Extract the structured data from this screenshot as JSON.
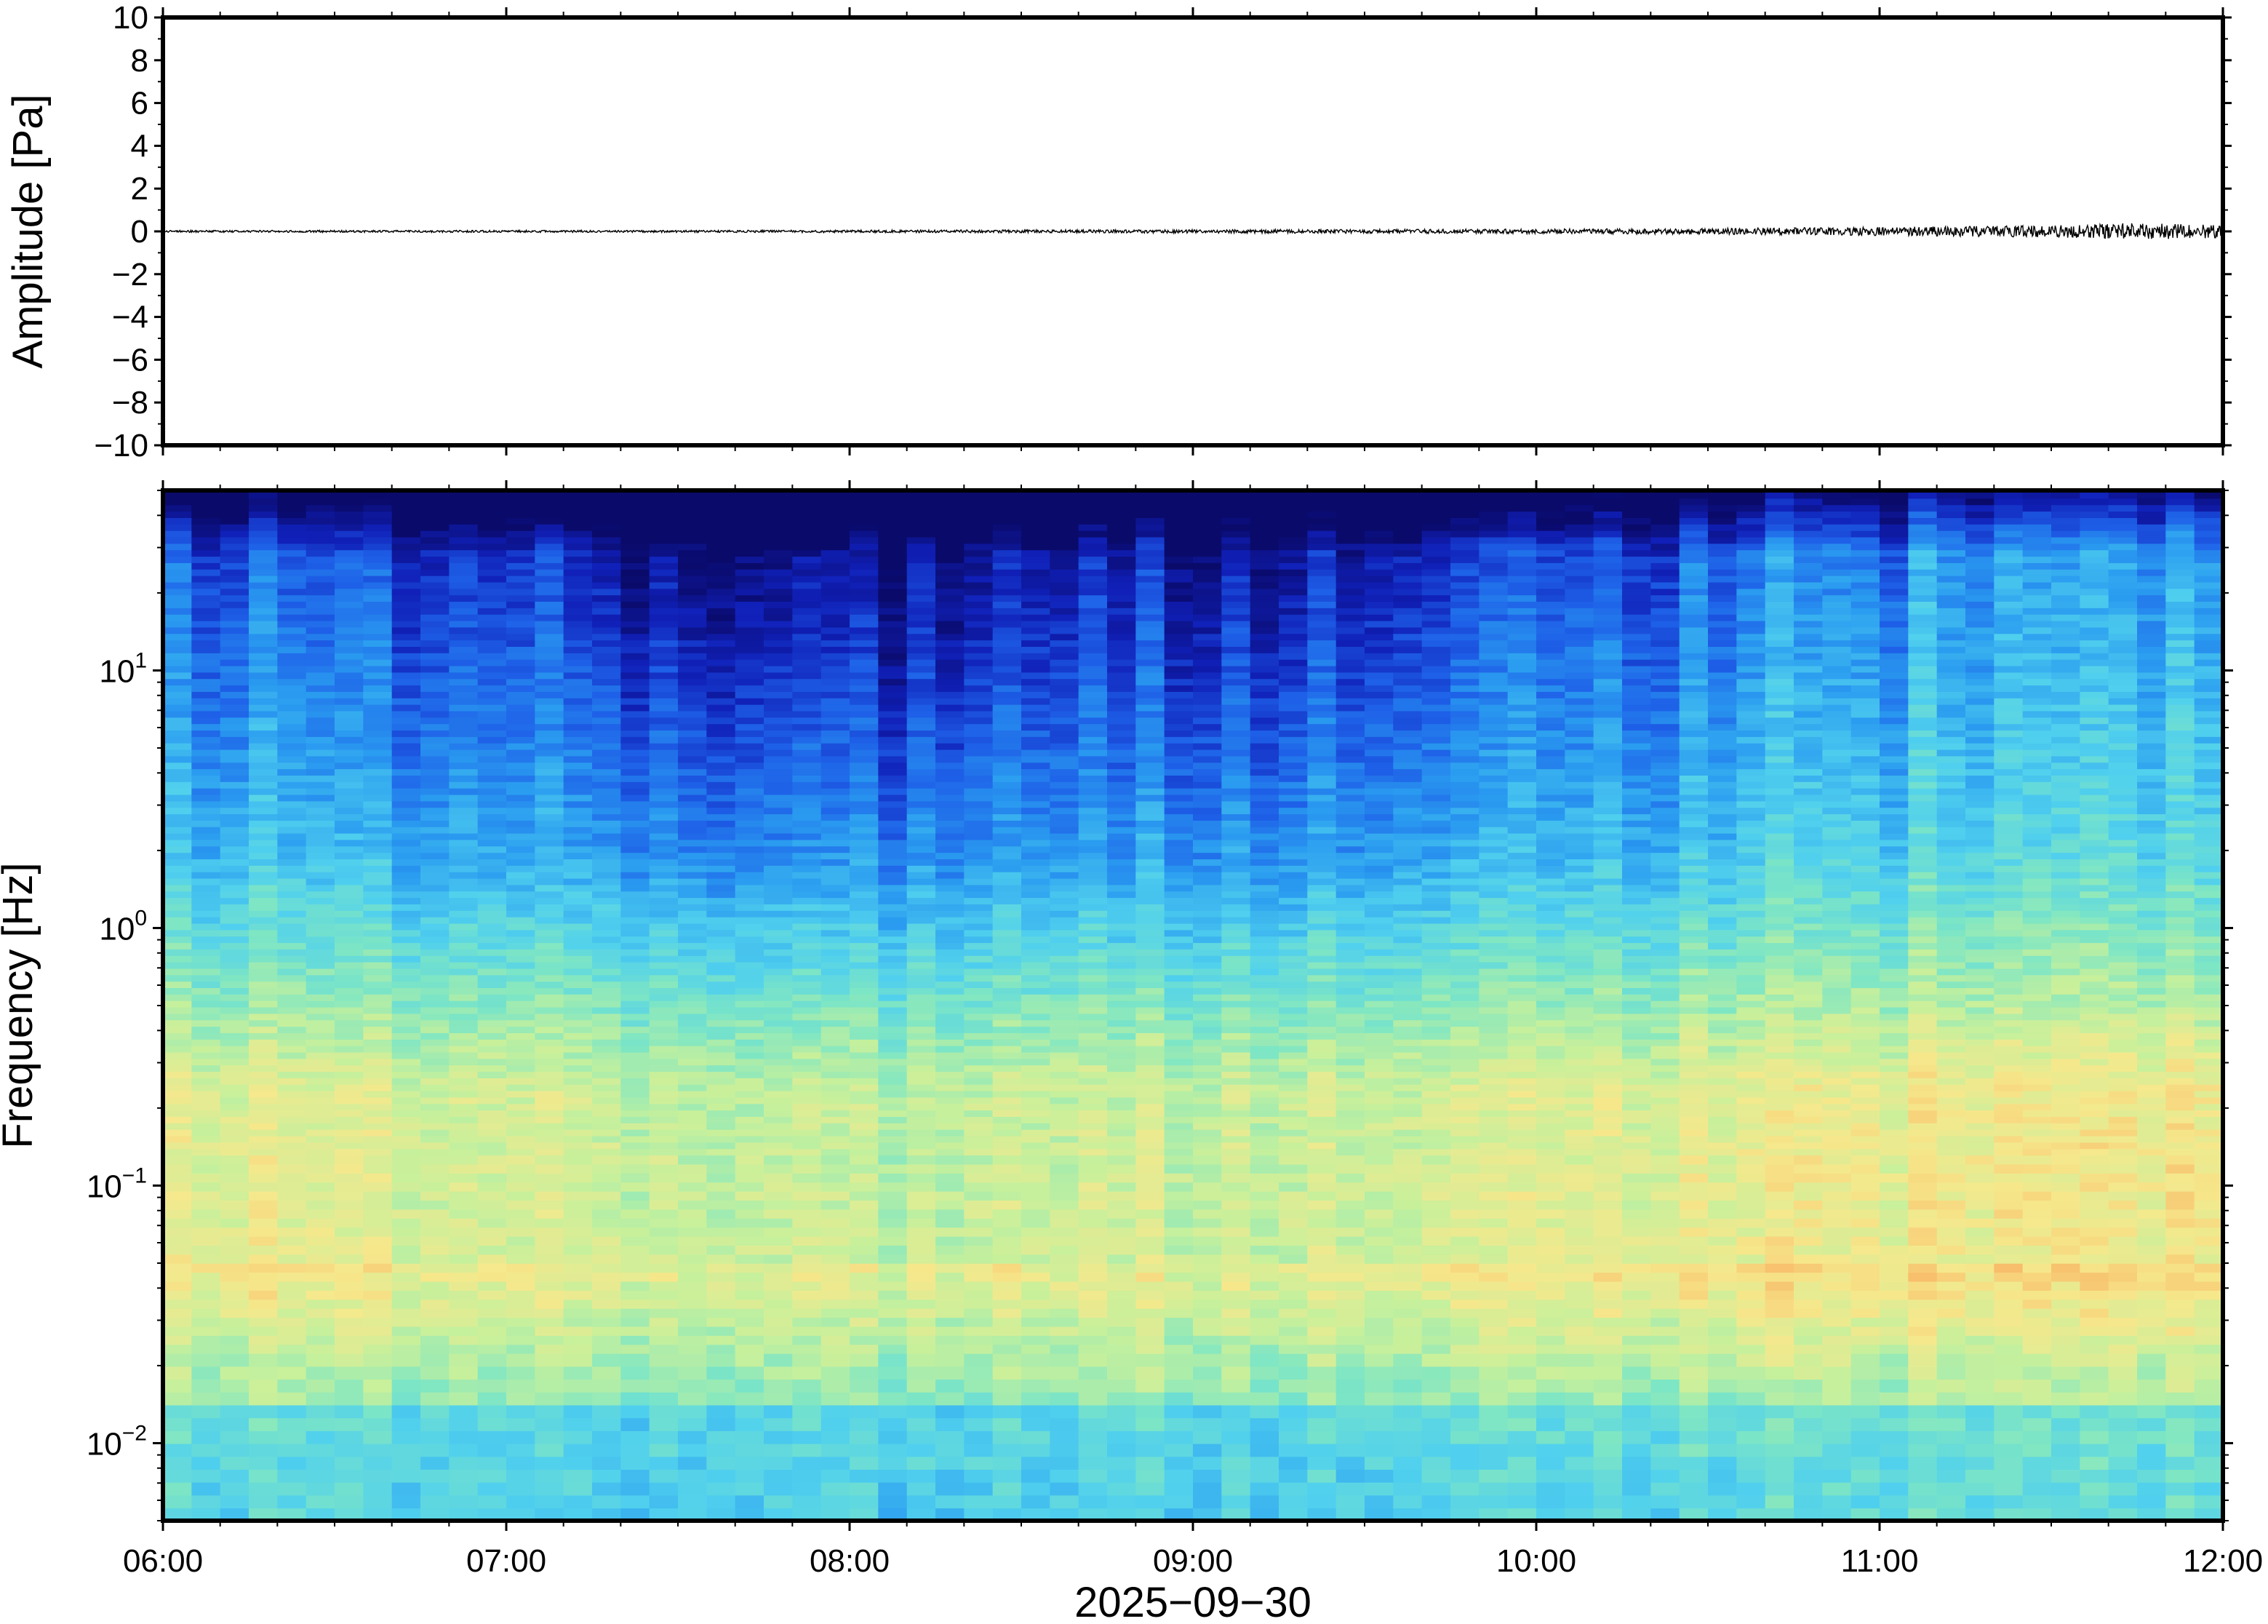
{
  "chart_data": [
    {
      "type": "line",
      "panel": "waveform",
      "ylabel": "Amplitude [Pa]",
      "ylim": [
        -10,
        10
      ],
      "yticks": [
        10,
        8,
        6,
        4,
        2,
        0,
        -2,
        -4,
        -6,
        -8,
        -10
      ],
      "ytick_labels": [
        "10",
        "8",
        "6",
        "4",
        "2",
        "0",
        "−2",
        "−4",
        "−6",
        "−8",
        "−10"
      ],
      "x_range": [
        "06:00",
        "12:00"
      ],
      "line_color": "#000000",
      "envelope": {
        "x_hours": [
          6.0,
          6.5,
          7.0,
          7.5,
          8.0,
          8.5,
          9.0,
          9.5,
          10.0,
          10.5,
          11.0,
          11.5,
          11.7,
          11.9,
          12.0
        ],
        "amplitude_pa": [
          0.05,
          0.05,
          0.05,
          0.05,
          0.06,
          0.07,
          0.08,
          0.09,
          0.11,
          0.14,
          0.2,
          0.28,
          0.38,
          0.34,
          0.3
        ]
      }
    },
    {
      "type": "heatmap",
      "panel": "spectrogram",
      "ylabel": "Frequency [Hz]",
      "xlabel": "2025−09−30",
      "y_scale": "log",
      "ylim": [
        0.005,
        50
      ],
      "yticks": [
        {
          "base": "10",
          "exp": "1",
          "value": 10
        },
        {
          "base": "10",
          "exp": "0",
          "value": 1
        },
        {
          "base": "10",
          "exp": "−1",
          "value": 0.1
        },
        {
          "base": "10",
          "exp": "−2",
          "value": 0.01
        }
      ],
      "xticks": [
        "06:00",
        "07:00",
        "08:00",
        "09:00",
        "10:00",
        "11:00",
        "12:00"
      ],
      "colormap": [
        "#0a0a6b",
        "#1020b8",
        "#1e60e8",
        "#2a9cf0",
        "#50d0ee",
        "#7ee6c4",
        "#c6f09c",
        "#f6e88c",
        "#f8b866",
        "#f09050"
      ],
      "power_trend": {
        "x_hours": [
          6.0,
          7.0,
          7.8,
          8.0,
          9.0,
          10.0,
          10.7,
          11.5,
          12.0
        ],
        "relative_level": [
          0.15,
          0.12,
          -0.25,
          -0.2,
          -0.05,
          0.05,
          0.3,
          0.45,
          0.5
        ]
      }
    }
  ]
}
